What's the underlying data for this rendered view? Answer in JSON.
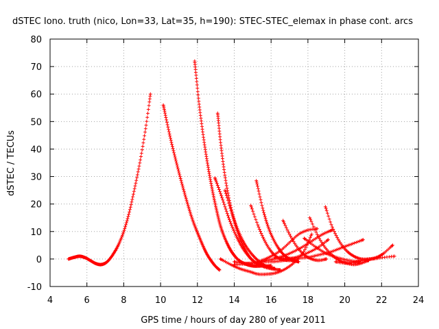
{
  "chart_data": {
    "type": "scatter",
    "title": "dSTEC Iono. truth (nico, Lon=33, Lat=35, h=190): STEC-STEC_elemax in phase cont. arcs",
    "xlabel": "GPS time / hours of day 280 of year 2011",
    "ylabel": "dSTEC  / TECUs",
    "xlim": [
      4,
      24
    ],
    "ylim": [
      -10,
      80
    ],
    "x_ticks": [
      "4",
      "6",
      "8",
      "10",
      "12",
      "14",
      "16",
      "18",
      "20",
      "22",
      "24"
    ],
    "y_ticks": [
      "-10",
      "0",
      "10",
      "20",
      "30",
      "40",
      "50",
      "60",
      "70",
      "80"
    ],
    "grid": true,
    "marker": "+",
    "color": "#ff0000",
    "series": [
      {
        "x": [
          5.0,
          5.3,
          5.6,
          5.9,
          6.2,
          6.5,
          6.8,
          7.1,
          7.4,
          7.7,
          8.0,
          8.3,
          8.6,
          8.9,
          9.2,
          9.45
        ],
        "values": [
          0,
          0.6,
          1.0,
          0.5,
          -0.6,
          -1.7,
          -2.0,
          -1.0,
          1.5,
          5.0,
          10.0,
          17.0,
          26.0,
          36.0,
          48.0,
          60.0
        ]
      },
      {
        "x": [
          10.15,
          10.5,
          10.9,
          11.3,
          11.7,
          12.1,
          12.5,
          12.9,
          13.2
        ],
        "values": [
          56.0,
          45.0,
          34.0,
          24.0,
          15.0,
          8.0,
          2.0,
          -2.0,
          -4.0
        ]
      },
      {
        "x": [
          11.85,
          12.1,
          12.4,
          12.7,
          13.0,
          13.3,
          13.7,
          14.1,
          14.5,
          15.0,
          15.5
        ],
        "values": [
          72.0,
          56.0,
          41.0,
          29.0,
          19.0,
          11.0,
          4.5,
          0.5,
          -1.5,
          -2.5,
          -2.5
        ]
      },
      {
        "x": [
          13.1,
          13.3,
          13.6,
          14.0,
          14.4,
          14.8,
          15.2,
          15.6,
          16.0
        ],
        "values": [
          53.0,
          40.0,
          26.0,
          14.0,
          6.0,
          1.0,
          -1.5,
          -2.5,
          -2.5
        ]
      },
      {
        "x": [
          12.95,
          13.3,
          13.7,
          14.1,
          14.5,
          15.0,
          15.5,
          16.0,
          16.5
        ],
        "values": [
          29.5,
          23.0,
          15.0,
          8.5,
          3.5,
          -0.5,
          -2.5,
          -3.5,
          -4.0
        ]
      },
      {
        "x": [
          13.5,
          13.9,
          14.3,
          14.7,
          15.2,
          15.7,
          16.2
        ],
        "values": [
          25.0,
          16.0,
          9.0,
          4.0,
          0.0,
          -2.5,
          -3.5
        ]
      },
      {
        "x": [
          13.25,
          13.8,
          14.3,
          14.8,
          15.3,
          15.8,
          16.3,
          16.8,
          17.3,
          17.8,
          18.2
        ],
        "values": [
          0.0,
          -2.0,
          -3.5,
          -4.5,
          -5.5,
          -5.5,
          -5.0,
          -3.5,
          -1.0,
          3.0,
          9.0
        ]
      },
      {
        "x": [
          14.9,
          15.3,
          15.7,
          16.1,
          16.5,
          16.9,
          17.3
        ],
        "values": [
          19.5,
          12.0,
          6.0,
          2.0,
          0.0,
          -0.5,
          -0.5
        ]
      },
      {
        "x": [
          15.2,
          15.6,
          16.0,
          16.5,
          17.0,
          17.5
        ],
        "values": [
          28.5,
          17.0,
          9.0,
          3.0,
          0.0,
          -1.0
        ]
      },
      {
        "x": [
          14.0,
          14.5,
          15.0,
          15.5,
          16.0,
          16.5,
          17.0,
          17.5,
          18.0,
          18.5
        ],
        "values": [
          -1.0,
          -1.5,
          -1.5,
          -0.5,
          1.0,
          3.0,
          6.0,
          9.0,
          10.5,
          11.0
        ]
      },
      {
        "x": [
          14.0,
          14.6,
          15.2,
          15.8,
          16.4,
          17.0,
          17.6,
          18.2,
          18.8,
          19.3
        ],
        "values": [
          -2.0,
          -1.8,
          -1.3,
          -0.5,
          0.5,
          2.0,
          4.0,
          6.5,
          9.0,
          10.5
        ]
      },
      {
        "x": [
          16.65,
          17.0,
          17.4,
          17.8,
          18.2,
          18.6,
          19.0
        ],
        "values": [
          14.0,
          9.0,
          4.5,
          1.5,
          0.0,
          -0.5,
          0.0
        ]
      },
      {
        "x": [
          18.1,
          18.5,
          18.9,
          19.3,
          19.7,
          20.1,
          20.5,
          20.9,
          21.3
        ],
        "values": [
          15.0,
          9.0,
          4.5,
          1.5,
          -0.5,
          -1.5,
          -2.0,
          -1.5,
          -0.5
        ]
      },
      {
        "x": [
          18.95,
          19.3,
          19.7,
          20.1,
          20.5,
          20.9,
          21.3,
          21.7,
          22.1,
          22.6
        ],
        "values": [
          19.0,
          12.0,
          6.5,
          3.0,
          1.0,
          0.0,
          0.0,
          0.5,
          2.0,
          5.0
        ]
      },
      {
        "x": [
          15.5,
          16.1,
          16.7,
          17.3,
          17.9,
          18.5,
          19.1
        ],
        "values": [
          -1.0,
          -1.0,
          -0.5,
          0.5,
          2.0,
          4.0,
          7.0
        ]
      },
      {
        "x": [
          16.2,
          16.8,
          17.4,
          18.0,
          18.6,
          19.2,
          19.8,
          20.4,
          21.0
        ],
        "values": [
          0.5,
          0.3,
          0.3,
          0.6,
          1.5,
          2.5,
          4.0,
          5.5,
          7.0
        ]
      },
      {
        "x": [
          17.8,
          18.4,
          19.0,
          19.6,
          20.2,
          20.8
        ],
        "values": [
          7.5,
          4.5,
          2.0,
          0.5,
          -0.5,
          -1.0
        ]
      },
      {
        "x": [
          19.5,
          20.0,
          20.5,
          21.0,
          21.5,
          22.0,
          22.7
        ],
        "values": [
          -1.0,
          -1.5,
          -1.2,
          -0.5,
          0.0,
          0.5,
          1.0
        ]
      }
    ]
  }
}
